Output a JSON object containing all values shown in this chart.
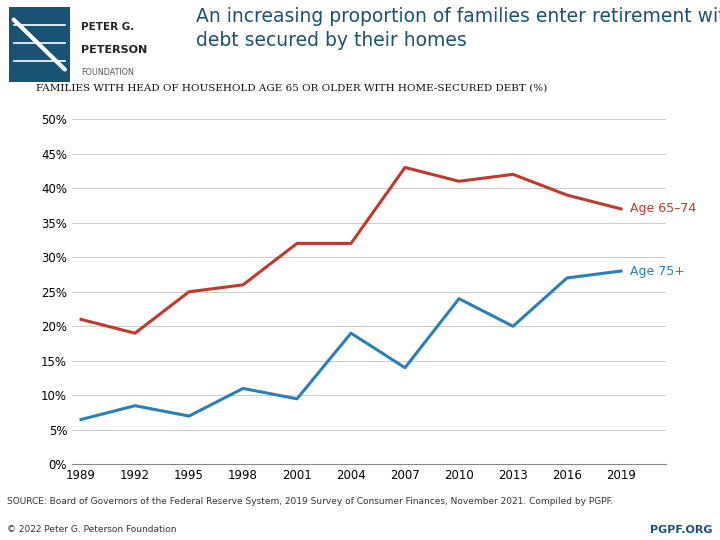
{
  "years": [
    1989,
    1992,
    1995,
    1998,
    2001,
    2004,
    2007,
    2010,
    2013,
    2016,
    2019
  ],
  "age_65_74": [
    21.0,
    19.0,
    25.0,
    26.0,
    32.0,
    32.0,
    43.0,
    41.0,
    42.0,
    39.0,
    37.0
  ],
  "age_75_plus": [
    6.5,
    8.5,
    7.0,
    11.0,
    9.5,
    19.0,
    14.0,
    24.0,
    20.0,
    27.0,
    28.0
  ],
  "color_red": "#c0392b",
  "color_blue": "#2980b9",
  "title_main": "An increasing proportion of families enter retirement with\ndebt secured by their homes",
  "subtitle": "Families with head of household age 65 or older with home-secured debt (%)",
  "ylim": [
    0,
    52
  ],
  "yticks": [
    0,
    5,
    10,
    15,
    20,
    25,
    30,
    35,
    40,
    45,
    50
  ],
  "source_text": "SOURCE: Board of Governors of the Federal Reserve System, 2019 Survey of Consumer Finances, November 2021. Compiled by PGPF.",
  "copyright_text": "© 2022 Peter G. Peterson Foundation",
  "pgpf_url": "PGPF.ORG",
  "label_65_74": "Age 65–74",
  "label_75_plus": "Age 75+",
  "title_color": "#1a5276",
  "pgpf_blue": "#1a5276",
  "logo_color": "#1a5276"
}
